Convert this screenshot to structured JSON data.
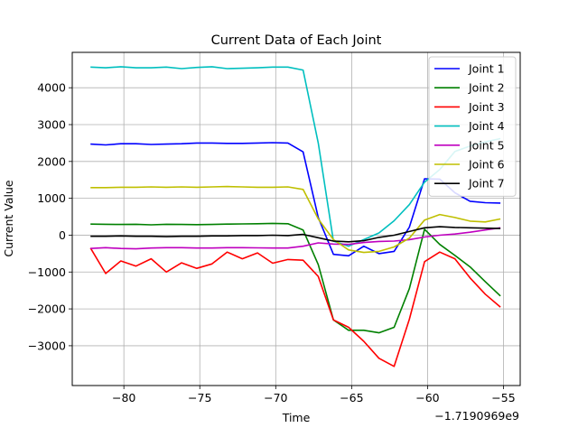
{
  "chart_data": {
    "type": "line",
    "title": "Current Data of Each Joint",
    "xlabel": "Time",
    "ylabel": "Current Value",
    "x_offset_label": "−1.7190969e9",
    "xlim": [
      -83.4,
      -53.9
    ],
    "ylim": [
      -4080,
      4960
    ],
    "xticks": [
      -80,
      -75,
      -70,
      -65,
      -60,
      -55
    ],
    "xtick_labels": [
      "−80",
      "−75",
      "−70",
      "−65",
      "−60",
      "−55"
    ],
    "yticks": [
      -3000,
      -2000,
      -1000,
      0,
      1000,
      2000,
      3000,
      4000
    ],
    "ytick_labels": [
      "−3000",
      "−2000",
      "−1000",
      "0",
      "1000",
      "2000",
      "3000",
      "4000"
    ],
    "grid": true,
    "legend_position": "upper right",
    "x": [
      -82.2,
      -81.2,
      -80.2,
      -79.2,
      -78.2,
      -77.2,
      -76.2,
      -75.2,
      -74.2,
      -73.2,
      -72.2,
      -71.2,
      -70.2,
      -69.2,
      -68.2,
      -67.2,
      -66.2,
      -65.2,
      -64.2,
      -63.2,
      -62.2,
      -61.2,
      -60.2,
      -59.2,
      -58.2,
      -57.2,
      -56.2,
      -55.2
    ],
    "series": [
      {
        "name": "Joint 1",
        "color": "#0000ff",
        "values": [
          2470,
          2450,
          2480,
          2480,
          2460,
          2470,
          2480,
          2500,
          2500,
          2490,
          2490,
          2500,
          2510,
          2500,
          2260,
          480,
          -520,
          -560,
          -300,
          -500,
          -440,
          220,
          1530,
          1520,
          1150,
          920,
          880,
          870
        ]
      },
      {
        "name": "Joint 2",
        "color": "#008000",
        "values": [
          300,
          295,
          290,
          295,
          280,
          295,
          290,
          285,
          290,
          300,
          305,
          310,
          320,
          310,
          140,
          -800,
          -2300,
          -2580,
          -2580,
          -2650,
          -2500,
          -1450,
          160,
          -250,
          -550,
          -860,
          -1260,
          -1650
        ]
      },
      {
        "name": "Joint 3",
        "color": "#ff0000",
        "values": [
          -350,
          -1040,
          -700,
          -840,
          -640,
          -1000,
          -750,
          -900,
          -780,
          -460,
          -640,
          -480,
          -760,
          -660,
          -680,
          -1120,
          -2300,
          -2500,
          -2880,
          -3340,
          -3560,
          -2280,
          -720,
          -460,
          -640,
          -1160,
          -1600,
          -1950
        ]
      },
      {
        "name": "Joint 4",
        "color": "#00bfbf",
        "values": [
          4560,
          4540,
          4570,
          4540,
          4540,
          4560,
          4520,
          4550,
          4570,
          4520,
          4530,
          4540,
          4560,
          4560,
          4480,
          2500,
          -160,
          -300,
          -120,
          60,
          390,
          830,
          1440,
          1780,
          2270,
          2420,
          2530,
          2620
        ]
      },
      {
        "name": "Joint 5",
        "color": "#bf00bf",
        "values": [
          -360,
          -340,
          -360,
          -370,
          -350,
          -340,
          -340,
          -350,
          -350,
          -340,
          -340,
          -345,
          -350,
          -350,
          -300,
          -210,
          -240,
          -250,
          -200,
          -170,
          -160,
          -120,
          -50,
          0,
          30,
          80,
          140,
          200
        ]
      },
      {
        "name": "Joint 6",
        "color": "#bfbf00",
        "values": [
          1290,
          1290,
          1300,
          1300,
          1310,
          1300,
          1310,
          1300,
          1310,
          1320,
          1310,
          1300,
          1300,
          1310,
          1240,
          440,
          -120,
          -400,
          -470,
          -440,
          -320,
          -80,
          410,
          560,
          480,
          380,
          360,
          440
        ]
      },
      {
        "name": "Joint 7",
        "color": "#000000",
        "values": [
          -30,
          -30,
          -20,
          -30,
          -30,
          -40,
          -30,
          -30,
          -20,
          -20,
          -10,
          -10,
          0,
          -10,
          20,
          -70,
          -160,
          -180,
          -150,
          -60,
          0,
          100,
          200,
          230,
          210,
          200,
          190,
          180
        ]
      }
    ]
  }
}
